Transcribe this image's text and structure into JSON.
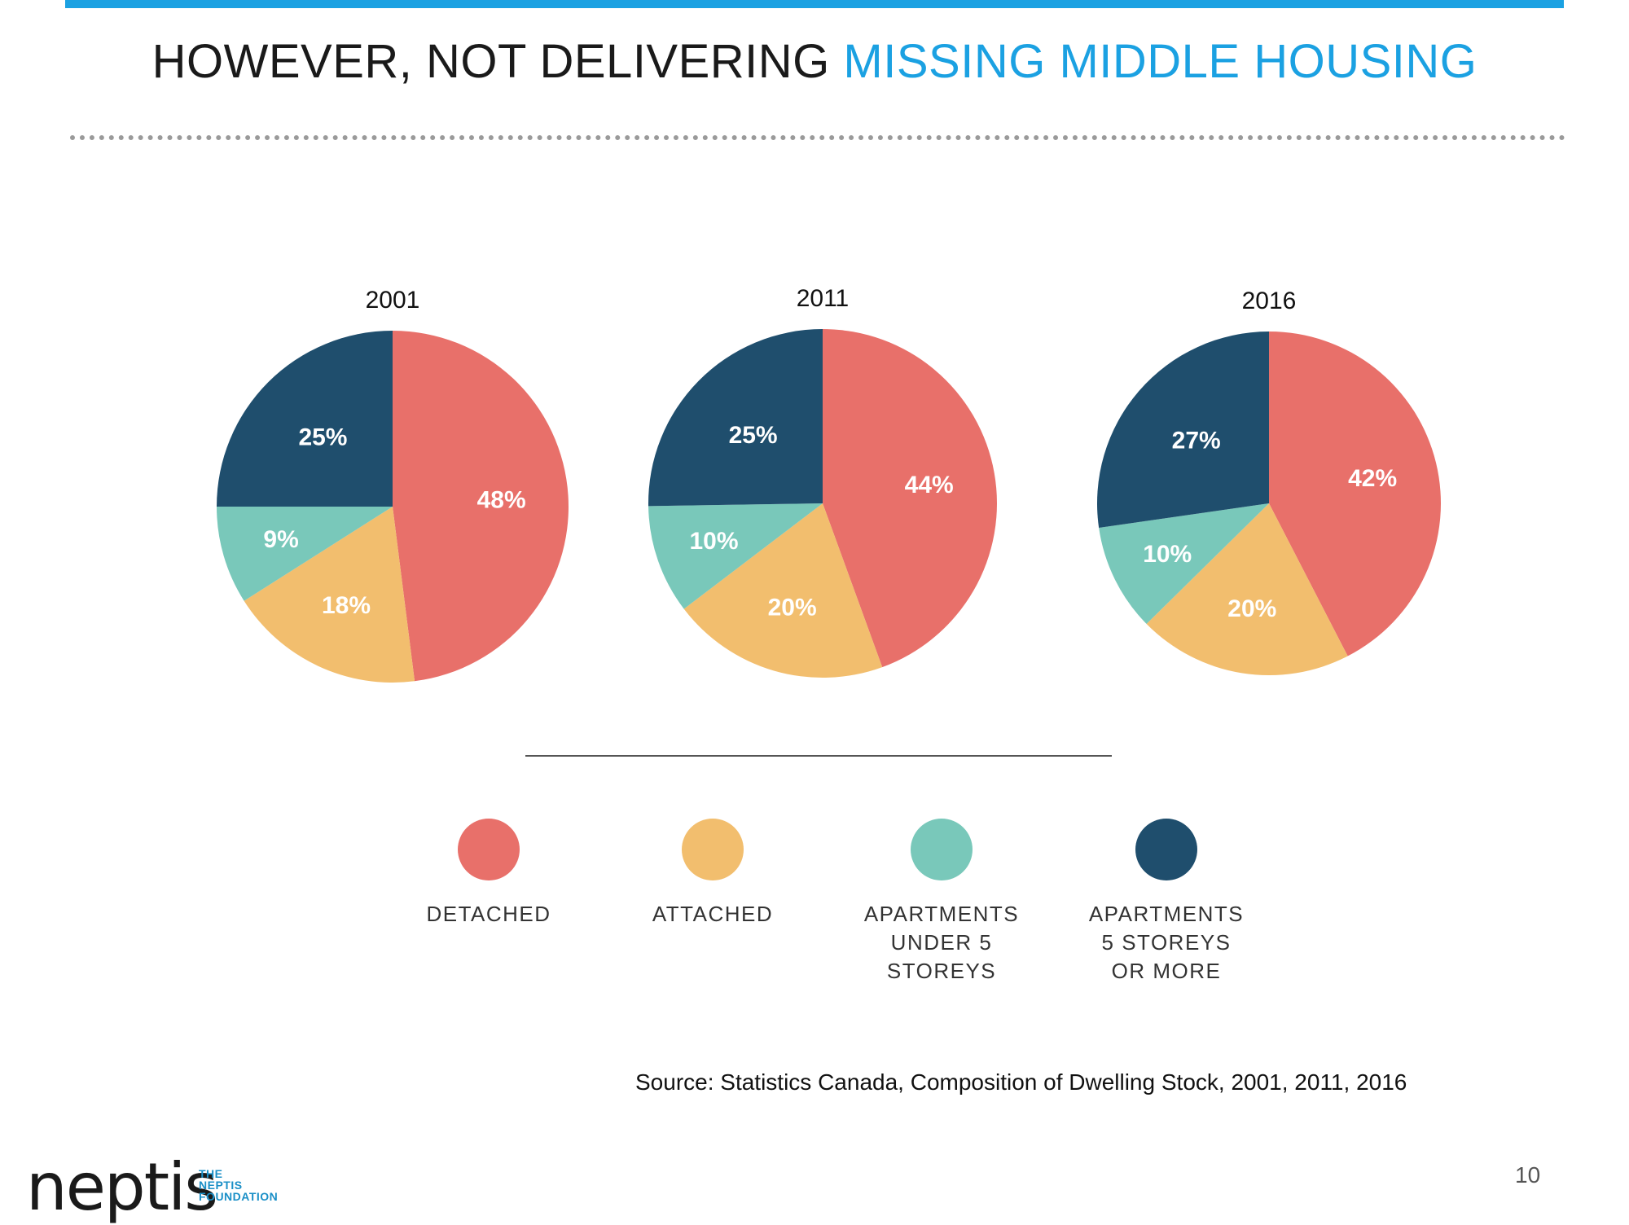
{
  "slide": {
    "title_black": "HOWEVER, NOT DELIVERING ",
    "title_blue": "MISSING MIDDLE HOUSING",
    "source": "Source: Statistics Canada, Composition of Dwelling Stock, 2001, 2011, 2016",
    "page_number": "10"
  },
  "logo": {
    "word": "neptis",
    "subtitle": "THE\nNEPTIS\nFOUNDATION"
  },
  "colors": {
    "accent_bar": "#1ba1e2",
    "title_blue": "#1ba1e2",
    "detached": "#e8706a",
    "attached": "#f2be6e",
    "apartments_under_5": "#79c8ba",
    "apartments_5_or_more": "#1f4e6d",
    "logo_blue": "#1a8fc7"
  },
  "chart_data": [
    {
      "type": "pie",
      "title": "2001",
      "categories": [
        "DETACHED",
        "ATTACHED",
        "APARTMENTS UNDER 5 STOREYS",
        "APARTMENTS 5 STOREYS OR MORE"
      ],
      "values": [
        48,
        18,
        9,
        25
      ],
      "labels": [
        "48%",
        "18%",
        "9%",
        "25%"
      ]
    },
    {
      "type": "pie",
      "title": "2011",
      "categories": [
        "DETACHED",
        "ATTACHED",
        "APARTMENTS UNDER 5 STOREYS",
        "APARTMENTS 5 STOREYS OR MORE"
      ],
      "values": [
        44,
        20,
        10,
        25
      ],
      "labels": [
        "44%",
        "20%",
        "10%",
        "25%"
      ]
    },
    {
      "type": "pie",
      "title": "2016",
      "categories": [
        "DETACHED",
        "ATTACHED",
        "APARTMENTS UNDER 5 STOREYS",
        "APARTMENTS 5 STOREYS OR MORE"
      ],
      "values": [
        42,
        20,
        10,
        27
      ],
      "labels": [
        "42%",
        "20%",
        "10%",
        "27%"
      ]
    }
  ],
  "legend": [
    {
      "key": "detached",
      "label": "DETACHED"
    },
    {
      "key": "attached",
      "label": "ATTACHED"
    },
    {
      "key": "apartments_under_5",
      "label": "APARTMENTS\nUNDER 5\nSTOREYS"
    },
    {
      "key": "apartments_5_or_more",
      "label": "APARTMENTS\n5 STOREYS\nOR MORE"
    }
  ]
}
